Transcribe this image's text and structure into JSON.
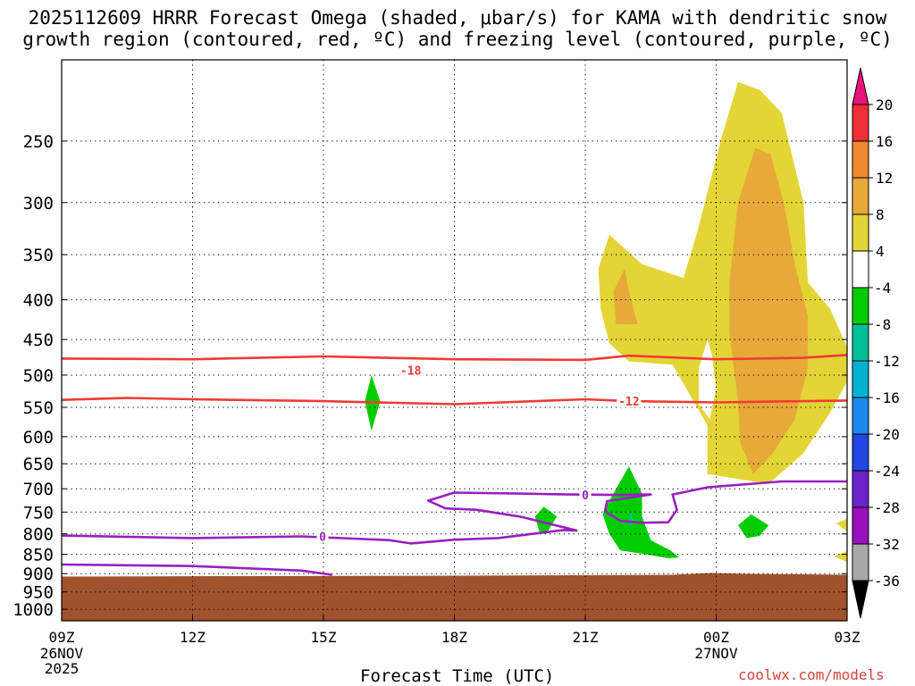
{
  "title_line1": "2025112609 HRRR Forecast Omega (shaded, μbar/s) for KAMA with dendritic snow",
  "title_line2": "growth region (contoured, red, ºC) and freezing level (contoured, purple, ºC)",
  "credit": "coolwx.com/models",
  "chart_data": {
    "type": "contour",
    "xlabel": "Forecast Time (UTC)",
    "ylabel": "",
    "x_ticks": [
      {
        "hour": 0,
        "label": "09Z",
        "sub": [
          "26NOV",
          "2025"
        ]
      },
      {
        "hour": 3,
        "label": "12Z",
        "sub": []
      },
      {
        "hour": 6,
        "label": "15Z",
        "sub": []
      },
      {
        "hour": 9,
        "label": "18Z",
        "sub": []
      },
      {
        "hour": 12,
        "label": "21Z",
        "sub": []
      },
      {
        "hour": 15,
        "label": "00Z",
        "sub": [
          "27NOV"
        ]
      },
      {
        "hour": 18,
        "label": "03Z",
        "sub": []
      }
    ],
    "xlim": [
      0,
      18
    ],
    "y_axis": "pressure (hPa), log scale, reversed",
    "ylim": [
      1050,
      200
    ],
    "y_ticks": [
      250,
      300,
      350,
      400,
      450,
      500,
      550,
      600,
      650,
      700,
      750,
      800,
      850,
      900,
      950,
      1000
    ],
    "ground_pressure": 903,
    "ground_color": "#a0522d",
    "colorbar": {
      "labels": [
        20,
        16,
        12,
        8,
        4,
        -4,
        -8,
        -12,
        -16,
        -20,
        -24,
        -28,
        -32,
        -36
      ],
      "colors": [
        "#e8137c",
        "#ee2f36",
        "#ef8a2e",
        "#e7a93a",
        "#e3d536",
        "#ffffff",
        "#00cc00",
        "#00bf9a",
        "#00b0d0",
        "#1a8aee",
        "#2145e0",
        "#6a23c8",
        "#9a0fbe",
        "#a8a8a8",
        "#000000"
      ]
    },
    "omega_regions": [
      {
        "level": "4 to 8",
        "color": "#e3d536",
        "points": [
          [
            15.5,
            210
          ],
          [
            15.1,
            250
          ],
          [
            14.55,
            330
          ],
          [
            14.25,
            375
          ],
          [
            13.3,
            360
          ],
          [
            12.55,
            330
          ],
          [
            12.3,
            365
          ],
          [
            12.35,
            410
          ],
          [
            12.55,
            455
          ],
          [
            13.0,
            480
          ],
          [
            14.0,
            485
          ],
          [
            14.8,
            580
          ],
          [
            14.8,
            670
          ],
          [
            16.2,
            690
          ],
          [
            17.0,
            630
          ],
          [
            17.6,
            560
          ],
          [
            18.0,
            510
          ],
          [
            18.0,
            460
          ],
          [
            17.6,
            410
          ],
          [
            17.1,
            380
          ],
          [
            17.0,
            300
          ],
          [
            16.5,
            230
          ],
          [
            16.0,
            215
          ]
        ]
      },
      {
        "level": "8 to 12",
        "color": "#e7a93a",
        "points": [
          [
            15.9,
            255
          ],
          [
            15.5,
            300
          ],
          [
            15.3,
            380
          ],
          [
            15.3,
            440
          ],
          [
            15.5,
            540
          ],
          [
            15.55,
            610
          ],
          [
            15.85,
            670
          ],
          [
            16.3,
            630
          ],
          [
            16.8,
            570
          ],
          [
            17.1,
            490
          ],
          [
            17.1,
            420
          ],
          [
            16.8,
            360
          ],
          [
            16.55,
            300
          ],
          [
            16.25,
            260
          ]
        ]
      },
      {
        "level": "8 to 12",
        "color": "#e7a93a",
        "points": [
          [
            12.9,
            365
          ],
          [
            12.65,
            390
          ],
          [
            12.7,
            430
          ],
          [
            13.2,
            430
          ],
          [
            13.0,
            390
          ]
        ]
      },
      {
        "level": "hole",
        "color": "#ffffff",
        "points": [
          [
            14.8,
            450
          ],
          [
            14.6,
            490
          ],
          [
            14.6,
            545
          ],
          [
            14.85,
            570
          ],
          [
            15.0,
            520
          ],
          [
            14.9,
            470
          ]
        ]
      },
      {
        "level": "4 to 8",
        "color": "#e3d536",
        "points": [
          [
            18.0,
            765
          ],
          [
            17.75,
            775
          ],
          [
            18.0,
            795
          ]
        ]
      },
      {
        "level": "4 to 8",
        "color": "#e3d536",
        "points": [
          [
            18.0,
            842
          ],
          [
            17.7,
            855
          ],
          [
            18.0,
            870
          ]
        ]
      },
      {
        "level": "-4 to -8",
        "color": "#00cc00",
        "points": [
          [
            7.1,
            500
          ],
          [
            6.95,
            540
          ],
          [
            7.1,
            590
          ],
          [
            7.3,
            540
          ]
        ]
      },
      {
        "level": "-4 to -8",
        "color": "#00cc00",
        "points": [
          [
            11.05,
            738
          ],
          [
            10.85,
            760
          ],
          [
            10.95,
            795
          ],
          [
            11.1,
            800
          ],
          [
            11.35,
            760
          ]
        ]
      },
      {
        "level": "-4 to -8",
        "color": "#00cc00",
        "points": [
          [
            13.0,
            655
          ],
          [
            12.55,
            725
          ],
          [
            12.4,
            755
          ],
          [
            12.55,
            800
          ],
          [
            12.8,
            840
          ],
          [
            13.5,
            852
          ],
          [
            13.9,
            860
          ],
          [
            14.15,
            858
          ],
          [
            13.95,
            840
          ],
          [
            13.5,
            815
          ],
          [
            13.3,
            760
          ],
          [
            13.3,
            710
          ]
        ]
      },
      {
        "level": "-8 to -12",
        "color": "#00bf9a",
        "points": [
          [
            13.05,
            748
          ],
          [
            13.0,
            770
          ],
          [
            13.05,
            785
          ],
          [
            13.1,
            770
          ]
        ]
      },
      {
        "level": "-4 to -8",
        "color": "#00cc00",
        "points": [
          [
            15.8,
            755
          ],
          [
            15.5,
            780
          ],
          [
            15.7,
            810
          ],
          [
            16.0,
            805
          ],
          [
            16.2,
            780
          ]
        ]
      }
    ],
    "dgz_contours": [
      {
        "value": -18,
        "label": "-18",
        "label_at": [
          8.0,
          493
        ],
        "points": [
          [
            0,
            476
          ],
          [
            3,
            477
          ],
          [
            6,
            473
          ],
          [
            9,
            477
          ],
          [
            12,
            478
          ],
          [
            13,
            472
          ],
          [
            15,
            477
          ],
          [
            17,
            475
          ],
          [
            18,
            471
          ]
        ]
      },
      {
        "value": -12,
        "label": "-12",
        "label_at": [
          13.0,
          540
        ],
        "points": [
          [
            0,
            538
          ],
          [
            1.5,
            535
          ],
          [
            3,
            537
          ],
          [
            6,
            540
          ],
          [
            9,
            545
          ],
          [
            12,
            537
          ],
          [
            13,
            540
          ],
          [
            15,
            542
          ],
          [
            17,
            540
          ],
          [
            18,
            539
          ]
        ]
      }
    ],
    "freezing_contours": [
      {
        "value": 0,
        "label": "0",
        "label_at": [
          5.98,
          806
        ],
        "points": [
          [
            0,
            804
          ],
          [
            3,
            810
          ],
          [
            5.5,
            806
          ],
          [
            7.5,
            815
          ],
          [
            8.0,
            823
          ],
          [
            9,
            814
          ],
          [
            10,
            810
          ],
          [
            11.5,
            791
          ],
          [
            11.8,
            792
          ],
          [
            10.5,
            760
          ],
          [
            9.5,
            745
          ],
          [
            8.8,
            742
          ],
          [
            8.4,
            725
          ],
          [
            9.0,
            708
          ],
          [
            10.5,
            710
          ],
          [
            11.7,
            712
          ],
          [
            12.7,
            713
          ],
          [
            13.5,
            712
          ],
          [
            12.5,
            726
          ],
          [
            12.45,
            748
          ],
          [
            12.8,
            770
          ],
          [
            13.3,
            774
          ],
          [
            13.9,
            773
          ],
          [
            14.1,
            745
          ],
          [
            14.0,
            712
          ],
          [
            14.8,
            697
          ],
          [
            16.5,
            685
          ],
          [
            18.0,
            685
          ]
        ]
      },
      {
        "value": 0,
        "label": "0",
        "label_at": [
          12.0,
          713
        ],
        "points": []
      },
      {
        "value": 0,
        "label": "",
        "label_at": null,
        "points": [
          [
            0,
            876
          ],
          [
            3,
            880
          ],
          [
            5.5,
            892
          ],
          [
            6.2,
            903
          ]
        ]
      }
    ]
  }
}
